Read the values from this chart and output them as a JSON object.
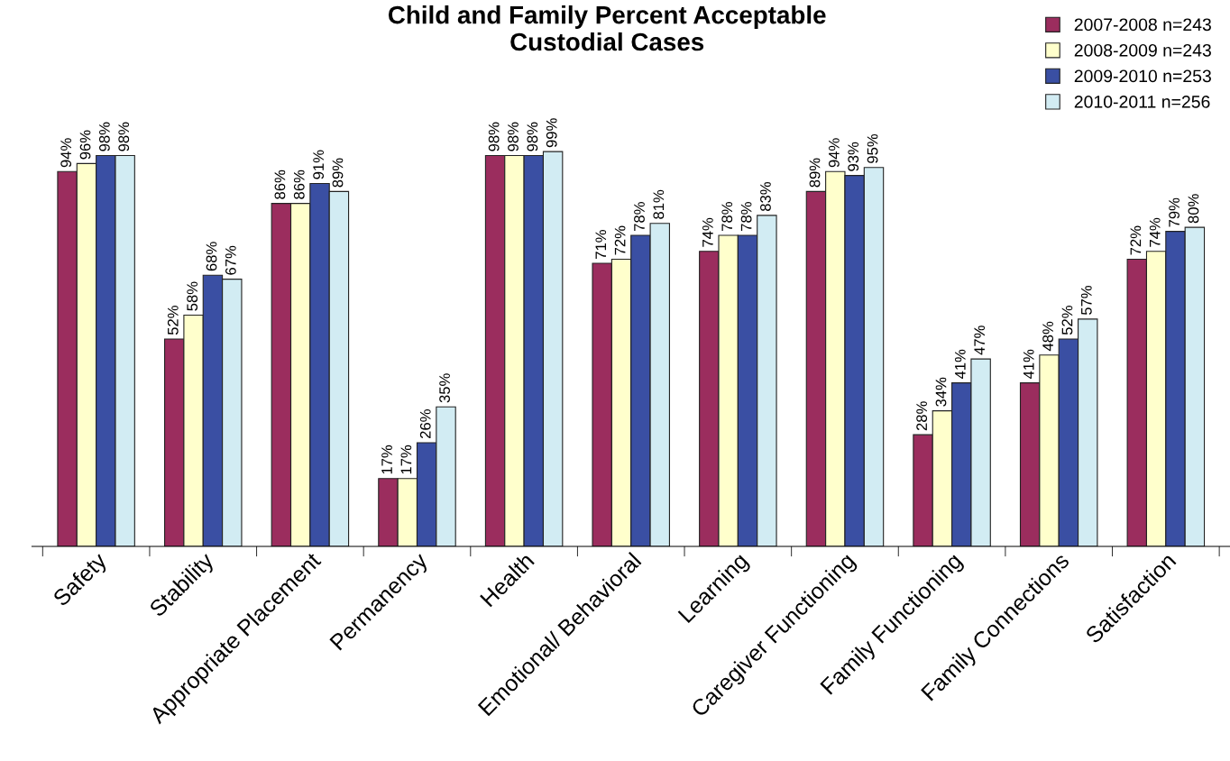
{
  "chart_data": {
    "type": "bar",
    "title": "Child and Family Percent Acceptable\nCustodial Cases",
    "categories": [
      "Safety",
      "Stability",
      "Appropriate Placement",
      "Permanency",
      "Health",
      "Emotional/ Behavioral",
      "Learning",
      "Caregiver Functioning",
      "Family Functioning",
      "Family Connections",
      "Satisfaction"
    ],
    "series": [
      {
        "name": "2007-2008 n=243",
        "color": "#9b2d5e",
        "values": [
          94,
          52,
          86,
          17,
          98,
          71,
          74,
          89,
          28,
          41,
          72
        ],
        "value_labels": [
          "94%",
          "52%",
          "86%",
          "17%",
          "98%",
          "71%",
          "74%",
          "89%",
          "28%",
          "41%",
          "72%"
        ]
      },
      {
        "name": "2008-2009 n=243",
        "color": "#ffffcc",
        "values": [
          96,
          58,
          86,
          17,
          98,
          72,
          78,
          94,
          34,
          48,
          74
        ],
        "value_labels": [
          "96%",
          "58%",
          "86%",
          "17%",
          "98%",
          "72%",
          "78%",
          "94%",
          "34%",
          "48%",
          "74%"
        ]
      },
      {
        "name": "2009-2010 n=253",
        "color": "#3a4fa3",
        "values": [
          98,
          68,
          91,
          26,
          98,
          78,
          78,
          93,
          41,
          52,
          79
        ],
        "value_labels": [
          "98%",
          "68%",
          "91%",
          "26%",
          "98%",
          "78%",
          "78%",
          "93%",
          "41%",
          "52%",
          "79%"
        ]
      },
      {
        "name": "2010-2011 n=256",
        "color": "#d2ecf3",
        "values": [
          98,
          67,
          89,
          35,
          99,
          81,
          83,
          95,
          47,
          57,
          80
        ],
        "value_labels": [
          "98%",
          "67%",
          "89%",
          "35%",
          "99%",
          "81%",
          "83%",
          "95%",
          "47%",
          "57%",
          "80%"
        ]
      }
    ],
    "legend": "top right",
    "tick_labels": "x"
  }
}
